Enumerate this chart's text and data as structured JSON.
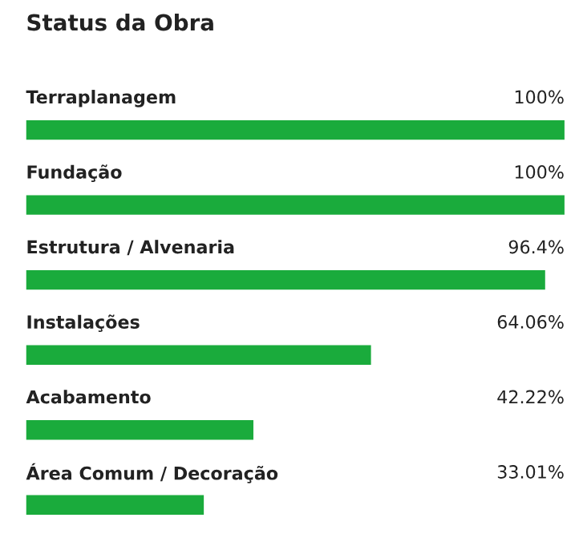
{
  "chart_data": {
    "type": "bar",
    "orientation": "horizontal",
    "title": "Status da Obra",
    "categories": [
      "Terraplanagem",
      "Fundação",
      "Estrutura / Alvenaria",
      "Instalações",
      "Acabamento",
      "Área Comum / Decoração"
    ],
    "values": [
      100,
      100,
      96.4,
      64.06,
      42.22,
      33.01
    ],
    "value_labels": [
      "100%",
      "100%",
      "96.4%",
      "64.06%",
      "42.22%",
      "33.01%"
    ],
    "color": "#1aab3c",
    "xlim": [
      0,
      100
    ]
  }
}
